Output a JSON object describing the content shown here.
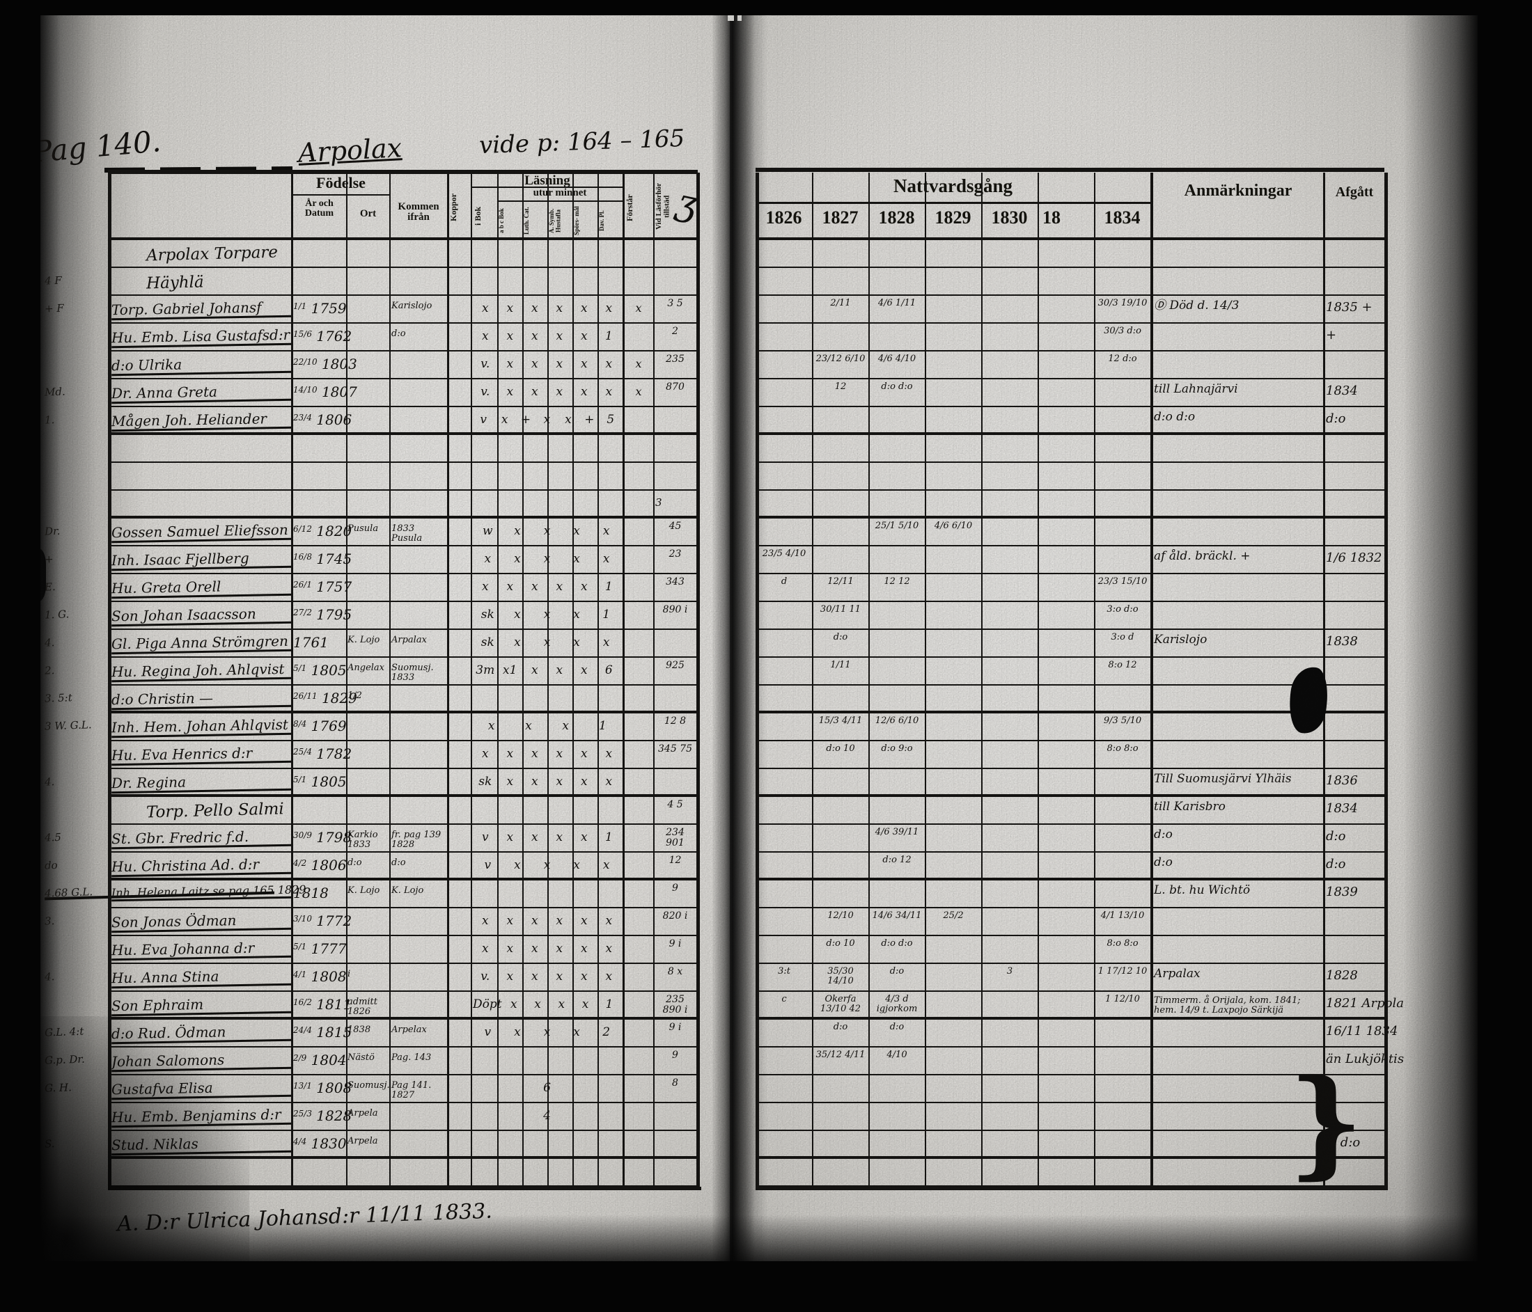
{
  "colors": {
    "ink": "#141210",
    "paper": "#e9e8e4"
  },
  "document": {
    "page_label": "Pag 140.",
    "title_script": "Arpolax",
    "title_ref": "vide p: 164 – 165",
    "footer_note": "A. D:r  Ulrica Johansd:r   11/11 1833."
  },
  "left_table": {
    "fodelse": "Födelse",
    "ar_och_datum": "År och Datum",
    "ort": "Ort",
    "kommen_ifran": "Kommen ifrån",
    "koppor": "Koppor",
    "lasning": "Läsning",
    "i_bok": "i Bok",
    "utur_minnet": "utur minnet",
    "sub_cols": [
      "a b c Bok",
      "Luth. Cat.",
      "A. Symb. Hustafla",
      "Spörs- mål",
      "Dav. Pl."
    ],
    "forstar": "Förstår",
    "tillstad": "Vid Läsförhör tillstäd"
  },
  "right_table": {
    "nattvardsgang": "Nattvardsgång",
    "years": [
      "1826",
      "1827",
      "1828",
      "1829",
      "1830",
      "18",
      "1834"
    ],
    "anmarkningar": "Anmärkningar",
    "afgatt": "Afgått"
  },
  "rows": [
    {
      "type": "heading",
      "name": "Arpolax Torpare"
    },
    {
      "type": "heading",
      "margin": "4 F",
      "name": "Häyhlä"
    },
    {
      "margin": "+ F",
      "name": "Torp. Gabriel Johansf",
      "birth_day": "1/1",
      "birth_year": "1759",
      "kommen": "Karislojo",
      "reading_marks": "x x x x x x",
      "forstar": "x",
      "tillstad": "3 5",
      "communion": [
        "",
        "2/11",
        "4/6 1/11",
        "",
        "",
        "",
        "30/3 19/10"
      ],
      "remark": "Ⓓ  Död d. 14/3",
      "afgatt": "1835 +"
    },
    {
      "name": "Hu. Emb. Lisa Gustafsd:r",
      "birth_day": "15/6",
      "birth_year": "1762",
      "kommen": "d:o",
      "reading_marks": "x x x x x 1",
      "tillstad": "2",
      "communion": [
        "",
        "",
        "",
        "",
        "",
        "",
        "30/3 d:o"
      ],
      "afgatt": "+"
    },
    {
      "name": "d:o Ulrika",
      "birth_day": "22/10",
      "birth_year": "1803",
      "reading_marks": "v. x x x x x",
      "forstar": "x",
      "tillstad": "235",
      "communion": [
        "",
        "23/12 6/10",
        "4/6 4/10",
        "",
        "",
        "",
        "12 d:o"
      ]
    },
    {
      "margin": "Md.",
      "name": "Dr. Anna Greta",
      "birth_day": "14/10",
      "birth_year": "1807",
      "reading_marks": "v. x x x x x",
      "forstar": "x",
      "tillstad": "870",
      "communion": [
        "",
        "12",
        "d:o d:o",
        "",
        "",
        "",
        ""
      ],
      "remark": "till Lahnajärvi",
      "afgatt": "1834"
    },
    {
      "margin": "1.",
      "name": "Mågen Joh. Heliander",
      "birth_day": "23/4",
      "birth_year": "1806",
      "reading_marks": "v x + x x + 5",
      "remark": "d:o            d:o",
      "afgatt": "d:o",
      "sep": true
    },
    {
      "type": "blank"
    },
    {
      "type": "blank"
    },
    {
      "type": "blank",
      "tillstad": "3",
      "sep": true
    },
    {
      "margin": "Dr.",
      "name": "Gossen Samuel Eliefsson",
      "birth_day": "6/12",
      "birth_year": "1820",
      "ort": "Pusula",
      "kommen": "1833 Pusula",
      "reading_marks": "w x x x x",
      "tillstad": "45",
      "communion": [
        "",
        "",
        "25/1 5/10",
        "4/6 6/10",
        "",
        "",
        ""
      ]
    },
    {
      "margin": "+",
      "name": "Inh. Isaac Fjellberg",
      "birth_day": "16/8",
      "birth_year": "1745",
      "reading_marks": "x x x x x",
      "tillstad": "23",
      "communion": [
        "23/5 4/10",
        "",
        "",
        "",
        "",
        "",
        ""
      ],
      "remark": "af åld. bräckl. +",
      "afgatt": "1/6 1832"
    },
    {
      "margin": "E.",
      "name": "Hu. Greta Orell",
      "birth_day": "26/1",
      "birth_year": "1757",
      "reading_marks": "x x x x x 1",
      "tillstad": "343",
      "communion": [
        "d",
        "12/11",
        "12 12",
        "",
        "",
        "",
        "23/3 15/10"
      ]
    },
    {
      "margin": "1. G.",
      "name": "Son Johan Isaacsson",
      "birth_day": "27/2",
      "birth_year": "1795",
      "reading_marks": "sk x x x 1",
      "tillstad": "890 i",
      "communion": [
        "",
        "30/11 11",
        "",
        "",
        "",
        "",
        "3:o d:o"
      ]
    },
    {
      "margin": "4.",
      "name": "Gl. Piga Anna Strömgren",
      "birth_year": "1761",
      "ort": "K. Lojo",
      "kommen": "Arpalax",
      "reading_marks": "sk x x x x",
      "communion": [
        "",
        "d:o",
        "",
        "",
        "",
        "",
        "3:o d"
      ],
      "remark": "Karislojo",
      "afgatt": "1838"
    },
    {
      "margin": "2.",
      "name": "Hu. Regina Joh. Ahlqvist",
      "birth_day": "5/1",
      "birth_year": "1805",
      "ort": "Angelax",
      "kommen": "Suomusj. 1833",
      "reading_marks": "3m x1 x x x 6",
      "tillstad": "925",
      "communion": [
        "",
        "1/11",
        "",
        "",
        "",
        "",
        "8:o 12"
      ]
    },
    {
      "margin": "3. 5:t",
      "name": "d:o Christin   —",
      "birth_day": "26/11",
      "birth_year": "1829",
      "ort": "1/2",
      "sep": true
    },
    {
      "margin": "3 W. G.L.",
      "name": "Inh. Hem. Johan Ahlqvist",
      "birth_day": "8/4",
      "birth_year": "1769",
      "reading_marks": "x x x 1",
      "tillstad": "12 8",
      "communion": [
        "",
        "15/3 4/11",
        "12/6 6/10",
        "",
        "",
        "",
        "9/3 5/10"
      ]
    },
    {
      "name": "Hu. Eva Henrics d:r",
      "birth_day": "25/4",
      "birth_year": "1782",
      "reading_marks": "x x x x x x",
      "tillstad": "345 75",
      "communion": [
        "",
        "d:o 10",
        "d:o 9:o",
        "",
        "",
        "",
        "8:o 8:o"
      ]
    },
    {
      "margin": "4.",
      "name": "Dr. Regina",
      "birth_day": "5/1",
      "birth_year": "1805",
      "reading_marks": "sk x x x x x",
      "remark": "Till Suomusjärvi Ylhäis",
      "afgatt": "1836",
      "sep": true
    },
    {
      "type": "heading",
      "name": "Torp. Pello Salmi",
      "tillstad": "4 5",
      "remark": "till Karisbro",
      "afgatt": "1834"
    },
    {
      "margin": "4.5",
      "name": "St. Gbr. Fredric f.d.",
      "birth_day": "30/9",
      "birth_year": "1798",
      "ort": "Karkio 1833",
      "kommen": "fr. pag 139 1828",
      "reading_marks": "v x x x x 1",
      "tillstad": "234 901",
      "communion": [
        "",
        "",
        "4/6 39/11",
        "",
        "",
        "",
        ""
      ],
      "remark": "d:o",
      "afgatt": "d:o"
    },
    {
      "margin": "do",
      "name": "Hu. Christina Ad. d:r",
      "birth_day": "4/2",
      "birth_year": "1806",
      "ort": "d:o",
      "kommen": "d:o",
      "reading_marks": "v x x x x",
      "tillstad": "12",
      "communion": [
        "",
        "",
        "d:o 12",
        "",
        "",
        "",
        ""
      ],
      "remark": "d:o",
      "afgatt": "d:o",
      "sep": true
    },
    {
      "margin": "4.68 G.L.",
      "name": "Inh. Helena Laitz   se pag 165   1829",
      "birth_year": "1818",
      "ort": "K. Lojo",
      "kommen": "K. Lojo",
      "tillstad": "9",
      "remark": "L. bt. hu Wichtö",
      "afgatt": "1839",
      "strike": true
    },
    {
      "margin": "3.",
      "name": "Son Jonas Ödman",
      "birth_day": "3/10",
      "birth_year": "1772",
      "reading_marks": "x x x x x x",
      "tillstad": "820 i",
      "communion": [
        "",
        "12/10",
        "14/6 34/11",
        "25/2",
        "",
        "",
        "4/1 13/10"
      ]
    },
    {
      "name": "Hu. Eva Johanna d:r",
      "birth_day": "5/1",
      "birth_year": "1777",
      "reading_marks": "x x x x x x",
      "tillstad": "9 i",
      "communion": [
        "",
        "d:o 10",
        "d:o d:o",
        "",
        "",
        "",
        "8:o 8:o"
      ]
    },
    {
      "margin": "4.",
      "name": "Hu. Anna Stina",
      "birth_day": "4/1",
      "birth_year": "1808",
      "ort": "i",
      "reading_marks": "v. x x x x x",
      "tillstad": "8 x",
      "communion": [
        "3:t",
        "35/30 14/10",
        "d:o",
        "",
        "3",
        "",
        "1 17/12 10"
      ],
      "remark": "Arpalax",
      "afgatt": "1828"
    },
    {
      "name": "Son Ephraim",
      "birth_day": "16/2",
      "birth_year": "1811",
      "ort": "admitt 1826",
      "reading_marks": "Döpt x x x x 1",
      "tillstad": "235 890 i",
      "communion": [
        "c",
        "Okerfa 13/10 42",
        "4/3 d igjorkom",
        "",
        "",
        "",
        "1 12/10"
      ],
      "remark": "Timmerm. å Orijala, kom. 1841; hem. 14/9 t. Laxpojo Särkijä",
      "afgatt": "1821 Arpola",
      "sep": true
    },
    {
      "margin": "G.L. 4:t",
      "name": "d:o Rud. Ödman",
      "birth_day": "24/4",
      "birth_year": "1815",
      "ort": "1838",
      "kommen": "Arpelax",
      "reading_marks": "v x x x 2",
      "tillstad": "9 i",
      "communion": [
        "",
        "d:o",
        "d:o",
        "",
        "",
        "",
        ""
      ],
      "afgatt": "16/11 1834"
    },
    {
      "margin": "G.p. Dr.",
      "name": "Johan Salomons",
      "birth_day": "2/9",
      "birth_year": "1804",
      "ort": "Nästö",
      "kommen": "Pag. 143",
      "tillstad": "9",
      "communion": [
        "",
        "35/12 4/11",
        "4/10",
        "",
        "",
        "",
        ""
      ],
      "afgatt": "än Lukjöktis"
    },
    {
      "margin": "G. H.",
      "name": "Gustafva Elisa",
      "birth_day": "13/1",
      "birth_year": "1808",
      "ort": "Suomusj.",
      "kommen": "Pag 141. 1827",
      "reading_marks": "6",
      "tillstad": "8"
    },
    {
      "name": "Hu. Emb. Benjamins d:r",
      "birth_day": "25/3",
      "birth_year": "1828",
      "ort": "Arpela",
      "reading_marks": "4"
    },
    {
      "margin": "S.",
      "name": "Stud. Niklas",
      "birth_day": "4/4",
      "birth_year": "1830",
      "ort": "Arpela",
      "afgatt": "+ d:o",
      "sep": true
    },
    {
      "type": "blank"
    }
  ]
}
